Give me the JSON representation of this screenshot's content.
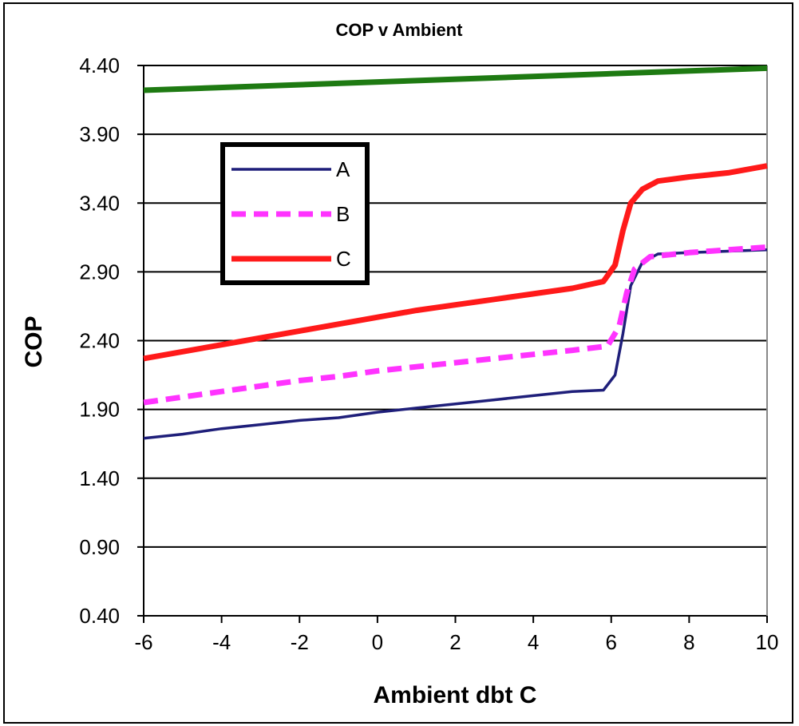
{
  "chart_data": {
    "type": "line",
    "title": "COP v Ambient",
    "xlabel": "Ambient dbt C",
    "ylabel": "COP",
    "xlim": [
      -6,
      10
    ],
    "ylim": [
      0.4,
      4.4
    ],
    "xticks": [
      -6,
      -4,
      -2,
      0,
      2,
      4,
      6,
      8,
      10
    ],
    "xtick_labels": [
      "-6",
      "-4",
      "-2",
      "0",
      "2",
      "4",
      "6",
      "8",
      "10"
    ],
    "yticks": [
      0.4,
      0.9,
      1.4,
      1.9,
      2.4,
      2.9,
      3.4,
      3.9,
      4.4
    ],
    "ytick_labels": [
      "0.40",
      "0.90",
      "1.40",
      "1.90",
      "2.40",
      "2.90",
      "3.40",
      "3.90",
      "4.40"
    ],
    "grid": "horizontal",
    "legend_position": "top-left",
    "series": [
      {
        "name": "",
        "color": "#1e7a12",
        "style": "solid",
        "x": [
          -6,
          10
        ],
        "y": [
          4.22,
          4.38
        ]
      },
      {
        "name": "A",
        "color": "#1f1f7a",
        "style": "solid",
        "x": [
          -6,
          -5,
          -4,
          -3,
          -2,
          -1,
          0,
          1,
          2,
          3,
          4,
          5,
          5.8,
          6.1,
          6.3,
          6.5,
          6.8,
          7.2,
          8,
          9,
          10
        ],
        "y": [
          1.69,
          1.72,
          1.76,
          1.79,
          1.82,
          1.84,
          1.88,
          1.91,
          1.94,
          1.97,
          2.0,
          2.03,
          2.04,
          2.15,
          2.45,
          2.8,
          2.97,
          3.03,
          3.04,
          3.05,
          3.06
        ]
      },
      {
        "name": "B",
        "color": "#ff33ff",
        "style": "dashed",
        "x": [
          -6,
          -5,
          -4,
          -3,
          -2,
          -1,
          0,
          1,
          2,
          3,
          4,
          5,
          5.9,
          6.2,
          6.4,
          6.6,
          7,
          8,
          9,
          10
        ],
        "y": [
          1.95,
          1.99,
          2.03,
          2.07,
          2.11,
          2.14,
          2.18,
          2.21,
          2.24,
          2.27,
          2.3,
          2.33,
          2.36,
          2.5,
          2.75,
          2.92,
          3.01,
          3.04,
          3.06,
          3.08
        ]
      },
      {
        "name": "C",
        "color": "#ff1a1a",
        "style": "solid",
        "x": [
          -6,
          -5,
          -4,
          -3,
          -2,
          -1,
          0,
          1,
          2,
          3,
          4,
          5,
          5.8,
          6.1,
          6.3,
          6.5,
          6.8,
          7.2,
          8,
          9,
          10
        ],
        "y": [
          2.27,
          2.32,
          2.37,
          2.42,
          2.47,
          2.52,
          2.57,
          2.62,
          2.66,
          2.7,
          2.74,
          2.78,
          2.83,
          2.95,
          3.2,
          3.4,
          3.5,
          3.56,
          3.59,
          3.62,
          3.67
        ]
      }
    ]
  }
}
